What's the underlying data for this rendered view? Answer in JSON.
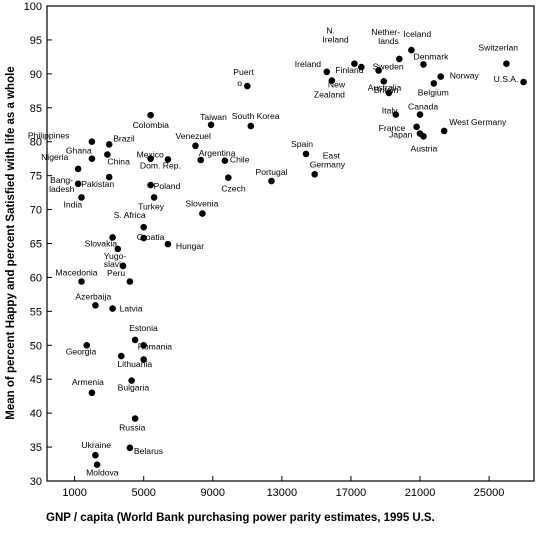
{
  "chart_data": {
    "type": "scatter",
    "title": "",
    "xlabel": "GNP  / capita (World Bank purchasing power parity estimates, 1995 U.S.",
    "ylabel": "Mean of percent Happy and percent Satisfied with life as a whole",
    "xlim": [
      -600,
      27600
    ],
    "ylim": [
      30,
      100
    ],
    "grid": false,
    "xticks": [
      1000,
      5000,
      9000,
      13000,
      17000,
      21000,
      25000
    ],
    "xtick_labels": [
      "1000",
      "5000",
      "9000",
      "13000",
      "17000",
      "21000",
      "25000"
    ],
    "yticks": [
      30,
      35,
      40,
      45,
      50,
      55,
      60,
      65,
      70,
      75,
      80,
      85,
      90,
      95,
      100
    ],
    "ytick_labels": [
      "30",
      "35",
      "40",
      "45",
      "50",
      "55",
      "60",
      "65",
      "70",
      "75",
      "80",
      "85",
      "90",
      "95",
      "100"
    ],
    "points": [
      {
        "label": "Iceland",
        "x": 20500,
        "y": 93.5
      },
      {
        "label": "Switzerlan",
        "x": 26000,
        "y": 91.5
      },
      {
        "label": "Netherlands",
        "x": 19800,
        "y": 92.2
      },
      {
        "label": "Denmark",
        "x": 21200,
        "y": 91.4
      },
      {
        "label": "N. Ireland",
        "x": 17200,
        "y": 91.5
      },
      {
        "label": "Ireland",
        "x": 15600,
        "y": 90.3
      },
      {
        "label": "Finland",
        "x": 17600,
        "y": 91.0
      },
      {
        "label": "Sweden",
        "x": 18600,
        "y": 90.5
      },
      {
        "label": "Norway",
        "x": 22200,
        "y": 89.6
      },
      {
        "label": "U.S.A.",
        "x": 27000,
        "y": 88.8
      },
      {
        "label": "New Zealand",
        "x": 15900,
        "y": 89.0
      },
      {
        "label": "Australia",
        "x": 18900,
        "y": 88.9
      },
      {
        "label": "Belgium",
        "x": 21800,
        "y": 88.6
      },
      {
        "label": "Puerto Rico",
        "x": 11000,
        "y": 88.2
      },
      {
        "label": "Britain",
        "x": 19200,
        "y": 87.2
      },
      {
        "label": "Italy",
        "x": 19600,
        "y": 84.0
      },
      {
        "label": "Canada",
        "x": 21000,
        "y": 84.0
      },
      {
        "label": "France",
        "x": 20800,
        "y": 82.2
      },
      {
        "label": "West Germany",
        "x": 22400,
        "y": 81.6
      },
      {
        "label": "Japan",
        "x": 21000,
        "y": 81.2
      },
      {
        "label": "Austria",
        "x": 21200,
        "y": 80.8
      },
      {
        "label": "Taiwan",
        "x": 8900,
        "y": 82.5
      },
      {
        "label": "South Korea",
        "x": 11200,
        "y": 82.3
      },
      {
        "label": "Colombia",
        "x": 5400,
        "y": 83.9
      },
      {
        "label": "Philippines",
        "x": 2000,
        "y": 80.0
      },
      {
        "label": "Brazil",
        "x": 3000,
        "y": 79.6
      },
      {
        "label": "Venezuel",
        "x": 8000,
        "y": 79.4
      },
      {
        "label": "Ghana",
        "x": 2000,
        "y": 77.5
      },
      {
        "label": "China",
        "x": 2900,
        "y": 78.1
      },
      {
        "label": "Mexico",
        "x": 5400,
        "y": 77.5
      },
      {
        "label": "Dom. Rep.",
        "x": 6400,
        "y": 77.4
      },
      {
        "label": "Argentina",
        "x": 8300,
        "y": 77.3
      },
      {
        "label": "Chile",
        "x": 9700,
        "y": 77.2
      },
      {
        "label": "Spain",
        "x": 14400,
        "y": 78.2
      },
      {
        "label": "East Germany",
        "x": 14900,
        "y": 75.2
      },
      {
        "label": "Nigeria",
        "x": 1200,
        "y": 76.0
      },
      {
        "label": "Pakistan",
        "x": 3000,
        "y": 74.8
      },
      {
        "label": "Poland",
        "x": 5400,
        "y": 73.6
      },
      {
        "label": "Czech",
        "x": 9900,
        "y": 74.7
      },
      {
        "label": "Portugal",
        "x": 12400,
        "y": 74.2
      },
      {
        "label": "Bangladesh",
        "x": 1200,
        "y": 73.8
      },
      {
        "label": "India",
        "x": 1400,
        "y": 71.8
      },
      {
        "label": "Turkey",
        "x": 5600,
        "y": 71.8
      },
      {
        "label": "Slovenia",
        "x": 8400,
        "y": 69.4
      },
      {
        "label": "S. Africa",
        "x": 5000,
        "y": 67.4
      },
      {
        "label": "Croatia",
        "x": 5000,
        "y": 65.8
      },
      {
        "label": "Slovakia",
        "x": 3200,
        "y": 65.9
      },
      {
        "label": "Yugoslavia",
        "x": 3500,
        "y": 64.2
      },
      {
        "label": "Hungar",
        "x": 6400,
        "y": 64.9
      },
      {
        "label": "Peru",
        "x": 3800,
        "y": 61.7
      },
      {
        "label": "Macedonia",
        "x": 1400,
        "y": 59.4
      },
      {
        "label": "",
        "x": 4200,
        "y": 59.4
      },
      {
        "label": "Azerbaija",
        "x": 2200,
        "y": 55.9
      },
      {
        "label": "Latvia",
        "x": 3200,
        "y": 55.4
      },
      {
        "label": "Estonia",
        "x": 4500,
        "y": 50.8
      },
      {
        "label": "Georgia",
        "x": 1700,
        "y": 50.0
      },
      {
        "label": "Romania",
        "x": 5000,
        "y": 50.0
      },
      {
        "label": "Lithuania",
        "x": 3700,
        "y": 48.4
      },
      {
        "label": "",
        "x": 5000,
        "y": 47.9
      },
      {
        "label": "Armenia",
        "x": 2000,
        "y": 43.0
      },
      {
        "label": "Bulgaria",
        "x": 4300,
        "y": 44.8
      },
      {
        "label": "Russia",
        "x": 4500,
        "y": 39.2
      },
      {
        "label": "Ukraine",
        "x": 2200,
        "y": 33.8
      },
      {
        "label": "Belarus",
        "x": 4200,
        "y": 34.9
      },
      {
        "label": "Moldova",
        "x": 2300,
        "y": 32.4
      }
    ]
  }
}
